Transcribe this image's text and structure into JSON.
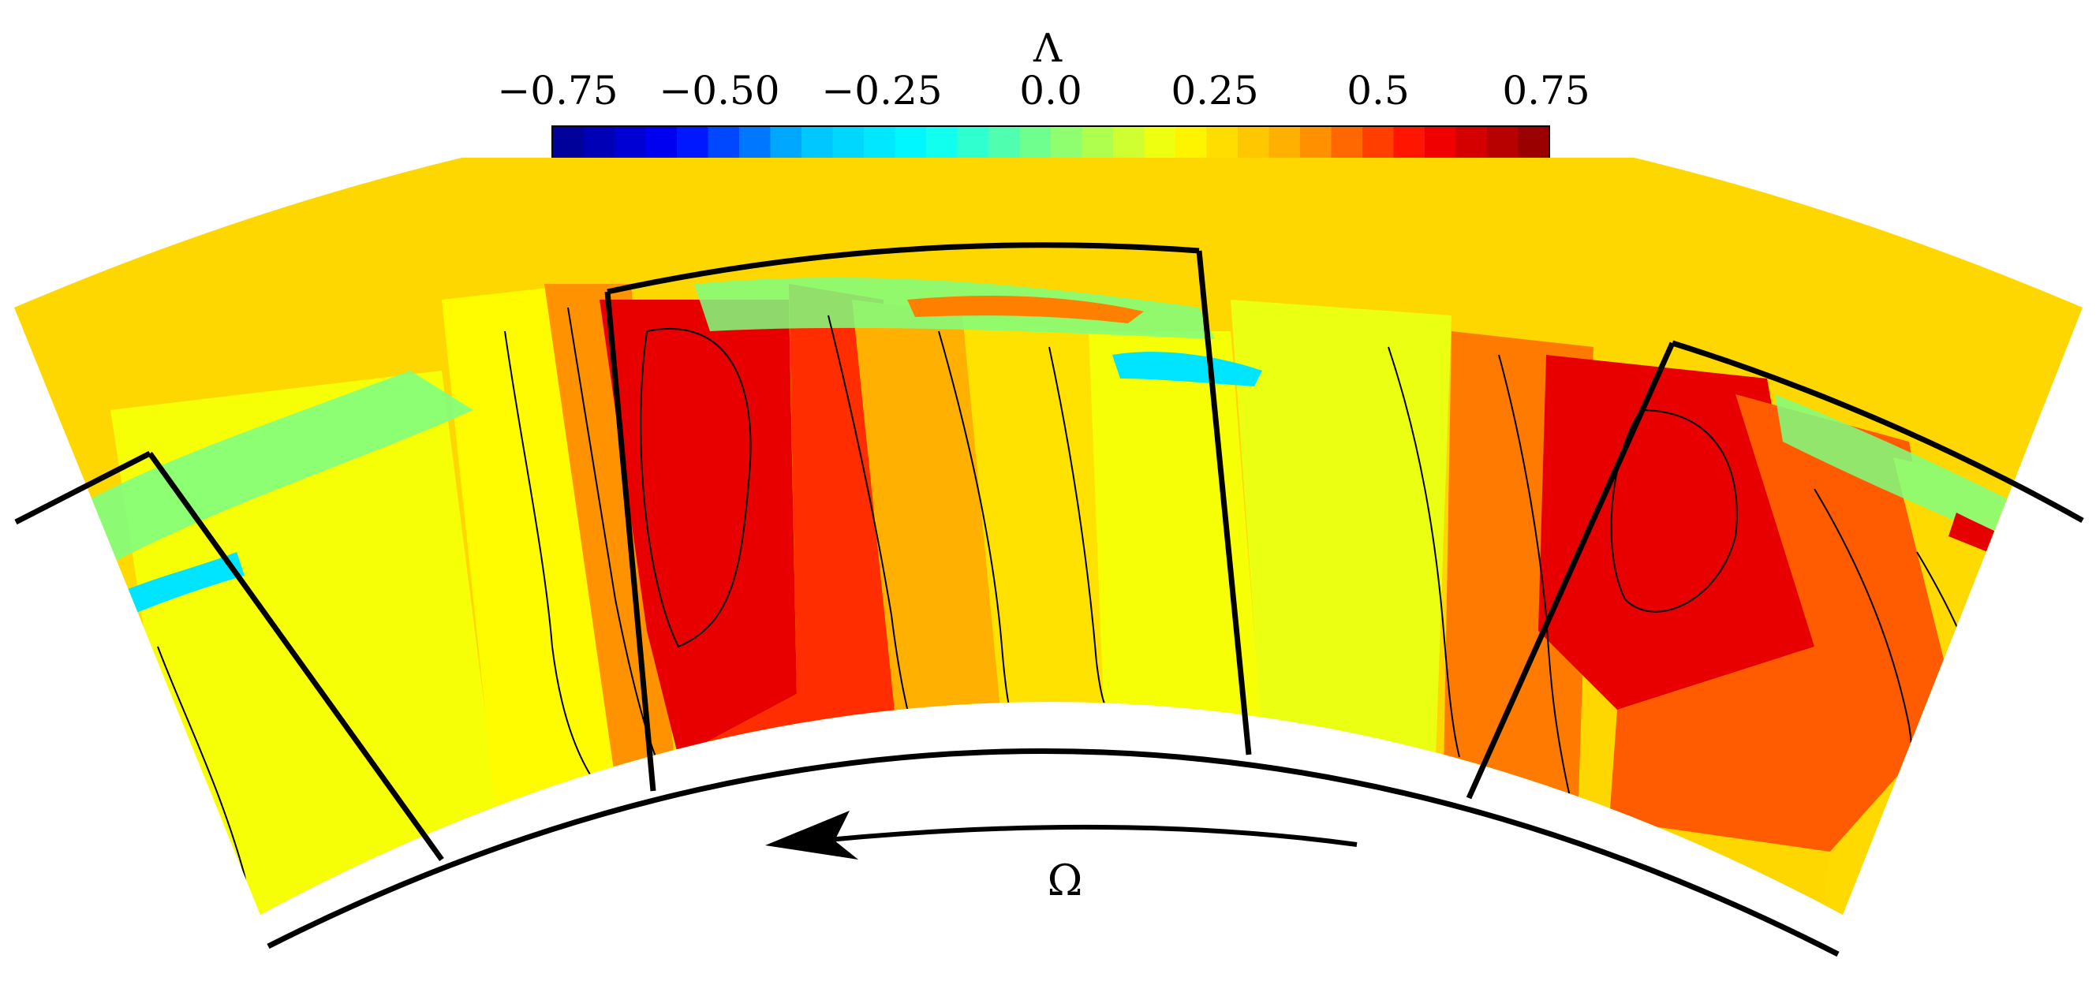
{
  "colorbar": {
    "title": "Λ",
    "ticks": [
      "−0.75",
      "−0.50",
      "−0.25",
      "0.0",
      "0.25",
      "0.5",
      "0.75"
    ],
    "range": [
      -0.85,
      0.85
    ],
    "levels": 32,
    "colors": [
      "#00008b",
      "#0000ff",
      "#00bfff",
      "#00ffff",
      "#7fff7f",
      "#ffff00",
      "#ffa500",
      "#ff0000",
      "#8b0000"
    ]
  },
  "rotation": {
    "label": "Ω",
    "direction": "counter-clockwise"
  },
  "contour_bands": [
    {
      "name": "field-band-far-left",
      "value": 0.3
    },
    {
      "name": "field-band-left",
      "value": 0.2
    },
    {
      "name": "field-band-left-center",
      "value": 0.22
    },
    {
      "name": "field-band-mid-left",
      "value": 0.45
    },
    {
      "name": "field-band-center-left",
      "value": 0.68
    },
    {
      "name": "field-band-center",
      "value": 0.58
    },
    {
      "name": "field-band-center-right",
      "value": 0.4
    },
    {
      "name": "field-band-mid",
      "value": 0.28
    },
    {
      "name": "field-band-mid-right",
      "value": 0.2
    },
    {
      "name": "field-band-right-center",
      "value": 0.18
    },
    {
      "name": "field-band-right",
      "value": 0.48
    },
    {
      "name": "field-band-right-peak",
      "value": 0.68
    },
    {
      "name": "field-band-far-right",
      "value": 0.52
    },
    {
      "name": "field-band-edge-right",
      "value": 0.3
    }
  ]
}
